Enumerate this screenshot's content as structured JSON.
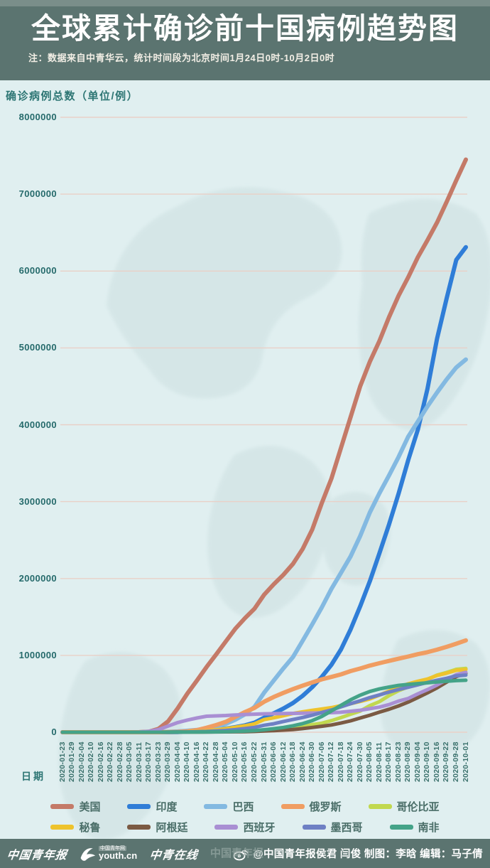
{
  "header": {
    "title": "全球累计确诊前十国病例趋势图",
    "note": "注：数据来自中青华云，统计时间段为北京时间1月24日0时-10月2日0时"
  },
  "chart_data": {
    "type": "line",
    "title": "全球累计确诊前十国病例趋势图",
    "ylabel": "确诊病例总数（单位/例）",
    "xlabel": "日期",
    "ylim": [
      0,
      8000000
    ],
    "yticks": [
      0,
      1000000,
      2000000,
      3000000,
      4000000,
      5000000,
      6000000,
      7000000,
      8000000
    ],
    "grid": true,
    "legend_position": "bottom",
    "x": [
      "2020-01-23",
      "2020-01-29",
      "2020-02-04",
      "2020-02-10",
      "2020-02-16",
      "2020-02-22",
      "2020-02-28",
      "2020-03-05",
      "2020-03-11",
      "2020-03-17",
      "2020-03-23",
      "2020-03-29",
      "2020-04-04",
      "2020-04-10",
      "2020-04-16",
      "2020-04-22",
      "2020-04-28",
      "2020-05-04",
      "2020-05-10",
      "2020-05-16",
      "2020-05-22",
      "2020-05-31",
      "2020-06-06",
      "2020-06-12",
      "2020-06-18",
      "2020-06-24",
      "2020-06-30",
      "2020-07-06",
      "2020-07-12",
      "2020-07-18",
      "2020-07-24",
      "2020-07-30",
      "2020-08-05",
      "2020-08-11",
      "2020-08-17",
      "2020-08-23",
      "2020-08-29",
      "2020-09-04",
      "2020-09-10",
      "2020-09-16",
      "2020-09-22",
      "2020-09-28",
      "2020-10-01"
    ],
    "series": [
      {
        "name": "美国",
        "color": "#c47a68",
        "values": [
          0,
          5,
          11,
          12,
          15,
          35,
          60,
          220,
          1300,
          6400,
          44000,
          142000,
          312000,
          502000,
          672000,
          849000,
          1012000,
          1180000,
          1347000,
          1484000,
          1608000,
          1790000,
          1925000,
          2048000,
          2191000,
          2382000,
          2635000,
          2980000,
          3300000,
          3700000,
          4100000,
          4500000,
          4820000,
          5090000,
          5400000,
          5680000,
          5920000,
          6180000,
          6400000,
          6630000,
          6900000,
          7180000,
          7450000
        ]
      },
      {
        "name": "印度",
        "color": "#2f7dd7",
        "values": [
          0,
          0,
          0,
          3,
          3,
          3,
          3,
          30,
          62,
          140,
          500,
          1000,
          3100,
          7600,
          13000,
          21000,
          31000,
          46000,
          67000,
          90000,
          125000,
          190000,
          246000,
          308000,
          380000,
          473000,
          585000,
          720000,
          878000,
          1077000,
          1337000,
          1638000,
          1964000,
          2329000,
          2702000,
          3106000,
          3542000,
          3936000,
          4465000,
          5118000,
          5646000,
          6145000,
          6310000
        ]
      },
      {
        "name": "巴西",
        "color": "#83b9e1",
        "values": [
          0,
          0,
          0,
          0,
          0,
          0,
          1,
          4,
          52,
          320,
          2200,
          4300,
          10000,
          19600,
          30400,
          45800,
          73200,
          107800,
          162700,
          233100,
          330900,
          514800,
          672800,
          829900,
          978100,
          1188600,
          1402000,
          1623300,
          1864700,
          2074900,
          2287500,
          2552300,
          2859100,
          3109600,
          3340200,
          3582400,
          3846200,
          4041600,
          4238400,
          4419100,
          4591400,
          4745500,
          4849200
        ]
      },
      {
        "name": "俄罗斯",
        "color": "#f09d62",
        "values": [
          0,
          0,
          2,
          2,
          2,
          2,
          5,
          10,
          28,
          114,
          438,
          1534,
          4731,
          11917,
          27938,
          58000,
          93600,
          134700,
          198700,
          262800,
          317600,
          396600,
          458700,
          511400,
          561100,
          606000,
          647800,
          687900,
          719400,
          752800,
          795000,
          829000,
          866600,
          897600,
          927700,
          956700,
          985300,
          1015100,
          1041000,
          1073800,
          1111200,
          1151400,
          1194600
        ]
      },
      {
        "name": "哥伦比亚",
        "color": "#c1d84f",
        "values": [
          0,
          0,
          0,
          0,
          0,
          0,
          0,
          0,
          1,
          65,
          235,
          702,
          1267,
          2473,
          3233,
          4356,
          5597,
          7973,
          10495,
          14216,
          18330,
          29384,
          36759,
          46858,
          60217,
          77313,
          97846,
          117110,
          150445,
          190700,
          233541,
          276055,
          345714,
          397623,
          476660,
          541139,
          590492,
          650055,
          686851,
          743945,
          777537,
          818203,
          829679
        ]
      },
      {
        "name": "秘鲁",
        "color": "#eec32d",
        "values": [
          0,
          0,
          0,
          0,
          0,
          0,
          0,
          0,
          17,
          117,
          395,
          852,
          1323,
          5897,
          12491,
          19250,
          31190,
          45928,
          65015,
          84495,
          108769,
          164476,
          187400,
          214788,
          244388,
          264689,
          285213,
          302718,
          319646,
          345537,
          370188,
          400683,
          433100,
          483133,
          535946,
          585236,
          629961,
          663437,
          691575,
          738020,
          768895,
          805302,
          814829
        ]
      },
      {
        "name": "阿根廷",
        "color": "#7b5a43",
        "values": [
          0,
          0,
          0,
          0,
          0,
          0,
          0,
          1,
          19,
          68,
          301,
          745,
          1451,
          1975,
          2571,
          3144,
          4127,
          4887,
          5776,
          7479,
          9931,
          16201,
          21037,
          27373,
          35552,
          47216,
          62268,
          77815,
          94060,
          119301,
          148027,
          185373,
          220682,
          260911,
          299126,
          342154,
          392009,
          451198,
          512293,
          577338,
          652174,
          723132,
          765002
        ]
      },
      {
        "name": "西班牙",
        "color": "#a98fd3",
        "values": [
          0,
          0,
          0,
          2,
          2,
          2,
          32,
          259,
          2277,
          11748,
          33089,
          80110,
          126168,
          158273,
          184948,
          208389,
          212917,
          217466,
          224350,
          230698,
          234824,
          239429,
          241310,
          243209,
          245268,
          247486,
          249659,
          252130,
          254056,
          260255,
          272421,
          285430,
          305767,
          326612,
          359082,
          405436,
          439286,
          498989,
          554143,
          614360,
          682267,
          748266,
          778607
        ]
      },
      {
        "name": "墨西哥",
        "color": "#6e80c4",
        "values": [
          0,
          0,
          0,
          0,
          0,
          0,
          0,
          5,
          11,
          82,
          316,
          848,
          1890,
          3844,
          6297,
          10544,
          16752,
          23471,
          33460,
          47144,
          62527,
          90664,
          110026,
          139196,
          165455,
          191410,
          220657,
          256848,
          289174,
          331298,
          370712,
          408449,
          449961,
          485836,
          522162,
          556216,
          585738,
          616894,
          647507,
          676487,
          700580,
          733717,
          743216
        ]
      },
      {
        "name": "南非",
        "color": "#44a388",
        "values": [
          0,
          0,
          0,
          0,
          0,
          0,
          0,
          0,
          13,
          85,
          402,
          1280,
          1585,
          2003,
          2605,
          3635,
          4996,
          7220,
          10015,
          14355,
          20125,
          32683,
          45973,
          61927,
          83890,
          111796,
          151209,
          205721,
          276242,
          350879,
          421996,
          482169,
          529877,
          563598,
          587345,
          609773,
          622551,
          633015,
          642431,
          653444,
          663282,
          671669,
          676084
        ]
      }
    ]
  },
  "footer": {
    "logo_cyd": "中国青年报",
    "logo_youth_net": "中国青年网",
    "logo_youth_site": "youth.cn",
    "logo_zqzx": "中青在线",
    "watermark": "中国青年报",
    "credit": "@中国青年报侯君 闫俊 制图：李晗 编辑：马子倩"
  },
  "colors": {
    "banner_bg": "#5b7470",
    "chart_bg": "#e0eff0",
    "grid": "#e9d0c7",
    "axis_text": "#256a6b",
    "label_text": "#2d7674"
  }
}
